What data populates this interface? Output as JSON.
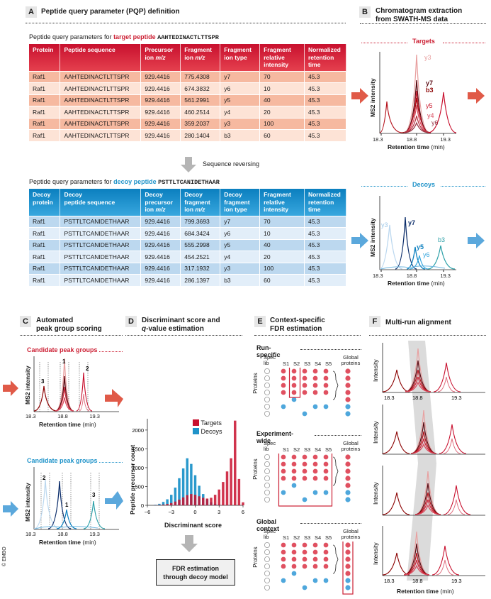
{
  "panelA": {
    "letter": "A",
    "title": "Peptide query parameter (PQP) definition",
    "caption_target_prefix": "Peptide query parameters for ",
    "caption_target_word": "target peptide",
    "caption_target_seq": "AAHTEDINACTLTTSPR",
    "caption_decoy_prefix": "Peptide query parameters for ",
    "caption_decoy_word": "decoy peptide",
    "caption_decoy_seq": "PSTTLTCANIDETHAAR",
    "reverse_label": "Sequence reversing",
    "target_headers": [
      "Protein",
      "Peptide sequence",
      "Precursor ion m/z",
      "Fragment ion m/z",
      "Fragment ion type",
      "Fragment relative intensity",
      "Normalized retention time"
    ],
    "target_rows": [
      [
        "Raf1",
        "AAHTEDINACTLTTSPR",
        "929.4416",
        "775.4308",
        "y7",
        "70",
        "45.3"
      ],
      [
        "Raf1",
        "AAHTEDINACTLTTSPR",
        "929.4416",
        "674.3832",
        "y6",
        "10",
        "45.3"
      ],
      [
        "Raf1",
        "AAHTEDINACTLTTSPR",
        "929.4416",
        "561.2991",
        "y5",
        "40",
        "45.3"
      ],
      [
        "Raf1",
        "AAHTEDINACTLTTSPR",
        "929.4416",
        "460.2514",
        "y4",
        "20",
        "45.3"
      ],
      [
        "Raf1",
        "AAHTEDINACTLTTSPR",
        "929.4416",
        "359.2037",
        "y3",
        "100",
        "45.3"
      ],
      [
        "Raf1",
        "AAHTEDINACTLTTSPR",
        "929.4416",
        "280.1404",
        "b3",
        "60",
        "45.3"
      ]
    ],
    "decoy_headers": [
      "Decoy protein",
      "Decoy peptide sequence",
      "Decoy precursor ion m/z",
      "Decoy fragment ion m/z",
      "Decoy fragment ion type",
      "Fragment relative intensity",
      "Normalized retention time"
    ],
    "decoy_rows": [
      [
        "Raf1",
        "PSTTLTCANIDETHAAR",
        "929.4416",
        "799.3693",
        "y7",
        "70",
        "45.3"
      ],
      [
        "Raf1",
        "PSTTLTCANIDETHAAR",
        "929.4416",
        "684.3424",
        "y6",
        "10",
        "45.3"
      ],
      [
        "Raf1",
        "PSTTLTCANIDETHAAR",
        "929.4416",
        "555.2998",
        "y5",
        "40",
        "45.3"
      ],
      [
        "Raf1",
        "PSTTLTCANIDETHAAR",
        "929.4416",
        "454.2521",
        "y4",
        "20",
        "45.3"
      ],
      [
        "Raf1",
        "PSTTLTCANIDETHAAR",
        "929.4416",
        "317.1932",
        "y3",
        "100",
        "45.3"
      ],
      [
        "Raf1",
        "PSTTLTCANIDETHAAR",
        "929.4416",
        "286.1397",
        "b3",
        "60",
        "45.3"
      ]
    ]
  },
  "panelB": {
    "letter": "B",
    "title_line1": "Chromatogram extraction",
    "title_line2": "from SWATH-MS data",
    "targets": "Targets",
    "decoys": "Decoys",
    "ylabel": "MS2 intensity",
    "xlabel_bold": "Retention time",
    "xlabel_unit": " (min)",
    "ticks": [
      "18.3",
      "18.8",
      "19.3"
    ],
    "target_labels": [
      "y3",
      "y7",
      "b3",
      "y5",
      "y4",
      "y6"
    ],
    "decoy_labels": [
      "y3",
      "y7",
      "y5",
      "y6",
      "b3"
    ]
  },
  "panelC": {
    "letter": "C",
    "title_line1": "Automated",
    "title_line2": "peak group scoring",
    "candidate": "Candidate peak groups",
    "ylabel": "MS2 intensity",
    "xlabel_bold": "Retention time",
    "xlabel_unit": " (min)",
    "ticks": [
      "18.3",
      "18.8",
      "19.3"
    ],
    "peaks_top": [
      "1",
      "2",
      "3"
    ],
    "peaks_bottom": [
      "1",
      "2",
      "3"
    ]
  },
  "panelD": {
    "letter": "D",
    "title_line1": "Discriminant score and",
    "title_line2_q": "q",
    "title_line2_rest": "-value estimation",
    "ylabel": "Peptide precursor count",
    "xlabel": "Discriminant score",
    "yticks": [
      "0",
      "500",
      "1000",
      "1500",
      "2000"
    ],
    "xticks": [
      "−6",
      "−3",
      "0",
      "3",
      "6"
    ],
    "legend_targets": "Targets",
    "legend_decoys": "Decoys",
    "fdr_line1": "FDR estimation",
    "fdr_line2": "through decoy model",
    "color_targets": "#c8102e",
    "color_decoys": "#1f93c9"
  },
  "panelE": {
    "letter": "E",
    "title_line1": "Context-specific",
    "title_line2": "FDR estimation",
    "sections": [
      "Run-specific",
      "Experiment-wide",
      "Global context"
    ],
    "cols": [
      "Spec lib",
      "S1",
      "S2",
      "S3",
      "S4",
      "S5"
    ],
    "global": "Global proteins",
    "ylabel": "Proteins"
  },
  "panelF": {
    "letter": "F",
    "title": "Multi-run alignment",
    "ylabel": "Intensity",
    "xlabel_bold": "Retention time",
    "xlabel_unit": " (min)",
    "ticks": [
      "18.3",
      "18.8",
      "19.3"
    ]
  },
  "chart_data": {
    "type": "bar",
    "title": "",
    "xlabel": "Discriminant score",
    "ylabel": "Peptide precursor count",
    "xlim": [
      -6,
      6
    ],
    "ylim": [
      0,
      2300
    ],
    "x": [
      -5,
      -4.5,
      -4,
      -3.5,
      -3,
      -2.5,
      -2,
      -1.5,
      -1,
      -0.5,
      0,
      0.5,
      1,
      1.5,
      2,
      2.5,
      3,
      3.5,
      4,
      4.5,
      5,
      5.5,
      6
    ],
    "series": [
      {
        "name": "Decoys",
        "values": [
          15,
          40,
          90,
          160,
          280,
          470,
          720,
          980,
          1250,
          1100,
          800,
          520,
          300,
          160,
          80,
          40,
          20,
          10,
          5,
          0,
          0,
          0,
          0
        ]
      },
      {
        "name": "Targets",
        "values": [
          5,
          10,
          20,
          35,
          60,
          100,
          150,
          210,
          270,
          300,
          280,
          240,
          200,
          180,
          200,
          280,
          420,
          620,
          900,
          1250,
          2250,
          700,
          80
        ]
      }
    ]
  },
  "copyright": "© EMBO"
}
